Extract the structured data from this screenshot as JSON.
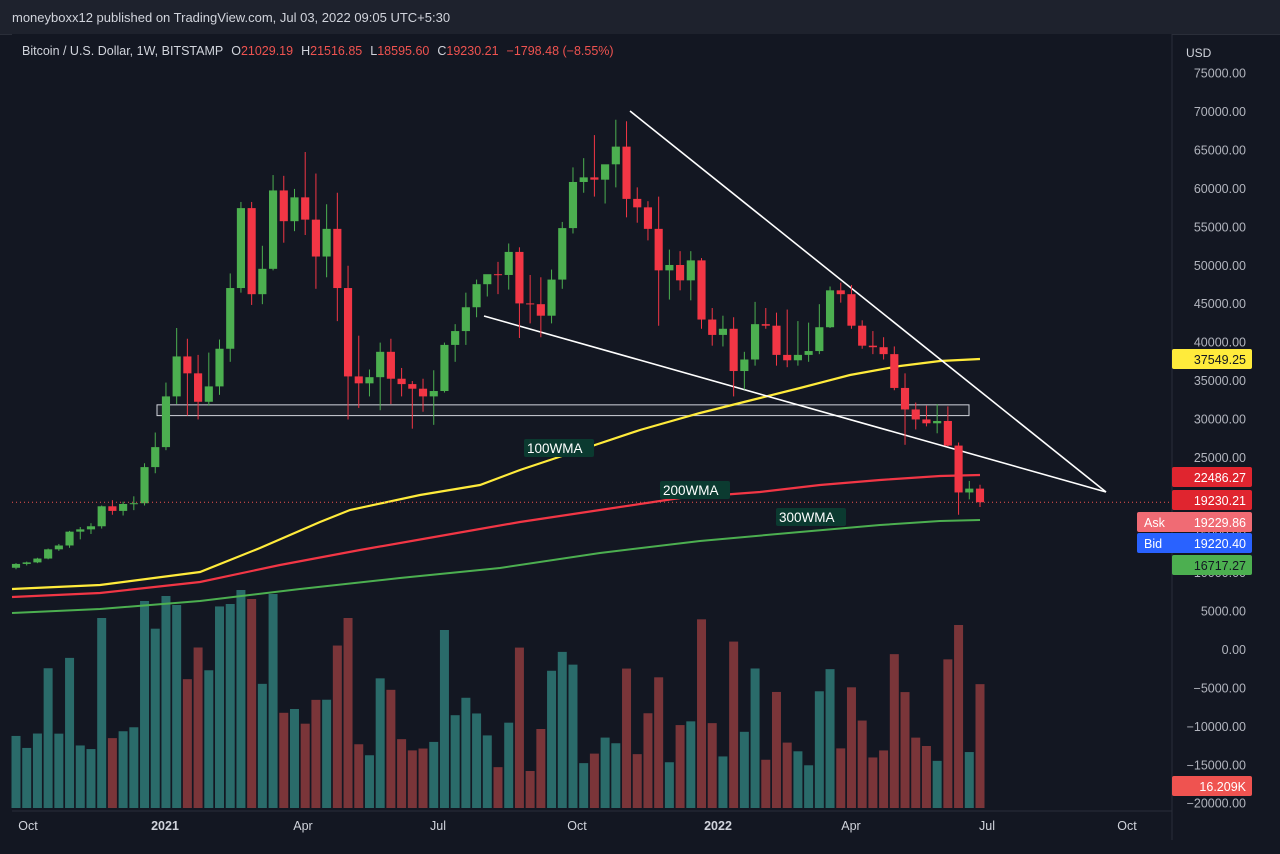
{
  "header": {
    "publisher": "moneyboxx12 published on TradingView.com, Jul 03, 2022 09:05 UTC+5:30"
  },
  "legend": {
    "symbol": "Bitcoin / U.S. Dollar, 1W, BITSTAMP",
    "o_label": "O",
    "o": "21029.19",
    "h_label": "H",
    "h": "21516.85",
    "l_label": "L",
    "l": "18595.60",
    "c_label": "C",
    "c": "19230.21",
    "change": "−1798.48 (−8.55%)"
  },
  "colors": {
    "up": "#26a69a",
    "down": "#ef5350",
    "candle_up": "#4caf50",
    "candle_down": "#f23645",
    "wma100": "#ffeb3b",
    "wma200": "#f23645",
    "wma300": "#4caf50",
    "trendline": "#ffffff"
  },
  "chart_data": {
    "type": "candlestick",
    "timeframe": "1W",
    "price_axis": {
      "currency": "USD",
      "ticks": [
        "75000.00",
        "70000.00",
        "65000.00",
        "60000.00",
        "55000.00",
        "50000.00",
        "45000.00",
        "40000.00",
        "35000.00",
        "30000.00",
        "25000.00",
        "20000.00",
        "15000.00",
        "10000.00",
        "5000.00",
        "0.00",
        "−5000.00",
        "−10000.00",
        "−15000.00",
        "−20000.00"
      ],
      "ylim": [
        -20000,
        77000
      ]
    },
    "time_axis": {
      "ticks": [
        "Oct",
        "2021",
        "Apr",
        "Jul",
        "Oct",
        "2022",
        "Apr",
        "Jul",
        "Oct"
      ]
    },
    "candles_weekly_approx": [
      [
        10700,
        11300,
        10500,
        11200
      ],
      [
        11200,
        11500,
        11000,
        11400
      ],
      [
        11400,
        12000,
        11300,
        11900
      ],
      [
        11900,
        13200,
        11800,
        13100
      ],
      [
        13100,
        13800,
        12900,
        13600
      ],
      [
        13600,
        15500,
        13300,
        15400
      ],
      [
        15400,
        16000,
        14400,
        15700
      ],
      [
        15700,
        16500,
        15100,
        16100
      ],
      [
        16100,
        18800,
        15800,
        18700
      ],
      [
        18700,
        19500,
        17600,
        18100
      ],
      [
        18100,
        19300,
        17500,
        19000
      ],
      [
        19000,
        20000,
        18200,
        19100
      ],
      [
        19100,
        24300,
        18800,
        23800
      ],
      [
        23800,
        28300,
        23000,
        26400
      ],
      [
        26400,
        34800,
        26000,
        33000
      ],
      [
        33000,
        41900,
        32000,
        38200
      ],
      [
        38200,
        40500,
        30500,
        36000
      ],
      [
        36000,
        38400,
        30000,
        32300
      ],
      [
        32300,
        38700,
        31800,
        34300
      ],
      [
        34300,
        40400,
        33200,
        39200
      ],
      [
        39200,
        49000,
        37500,
        47100
      ],
      [
        47100,
        58300,
        46500,
        57500
      ],
      [
        57500,
        58300,
        44900,
        46300
      ],
      [
        46300,
        52600,
        45000,
        49600
      ],
      [
        49600,
        61800,
        49400,
        59800
      ],
      [
        59800,
        61700,
        53000,
        55800
      ],
      [
        55800,
        60000,
        54500,
        58900
      ],
      [
        58900,
        64800,
        54000,
        56000
      ],
      [
        56000,
        62000,
        47000,
        51200
      ],
      [
        51200,
        58000,
        48500,
        54800
      ],
      [
        54800,
        59500,
        42800,
        47100
      ],
      [
        47100,
        50000,
        30000,
        35600
      ],
      [
        35600,
        40900,
        31500,
        34700
      ],
      [
        34700,
        36500,
        33000,
        35500
      ],
      [
        35500,
        40000,
        31200,
        38800
      ],
      [
        38800,
        40500,
        32000,
        35300
      ],
      [
        35300,
        36700,
        33000,
        34600
      ],
      [
        34600,
        35000,
        28800,
        34000
      ],
      [
        34000,
        35300,
        31000,
        33000
      ],
      [
        33000,
        36400,
        29300,
        33700
      ],
      [
        33700,
        40000,
        33500,
        39700
      ],
      [
        39700,
        42400,
        37500,
        41500
      ],
      [
        41500,
        46500,
        39700,
        44600
      ],
      [
        44600,
        48200,
        43300,
        47600
      ],
      [
        47600,
        48100,
        46000,
        48900
      ],
      [
        48900,
        50500,
        46300,
        48800
      ],
      [
        48800,
        52900,
        46900,
        51800
      ],
      [
        51800,
        52400,
        40600,
        45100
      ],
      [
        45100,
        48800,
        42500,
        45000
      ],
      [
        45000,
        48500,
        40700,
        43500
      ],
      [
        43500,
        49500,
        42500,
        48200
      ],
      [
        48200,
        55700,
        47000,
        54900
      ],
      [
        54900,
        62800,
        54200,
        60900
      ],
      [
        60900,
        64000,
        59500,
        61500
      ],
      [
        61500,
        67000,
        59000,
        61200
      ],
      [
        61200,
        62600,
        58100,
        63200
      ],
      [
        63200,
        69000,
        60200,
        65500
      ],
      [
        65500,
        68800,
        56300,
        58700
      ],
      [
        58700,
        60200,
        55600,
        57600
      ],
      [
        57600,
        58400,
        53300,
        54800
      ],
      [
        54800,
        59000,
        42200,
        49400
      ],
      [
        49400,
        52100,
        45600,
        50100
      ],
      [
        50100,
        51900,
        46800,
        48100
      ],
      [
        48100,
        51900,
        45500,
        50700
      ],
      [
        50700,
        51000,
        41800,
        43000
      ],
      [
        43000,
        44500,
        39600,
        41000
      ],
      [
        41000,
        43500,
        39500,
        41800
      ],
      [
        41800,
        43300,
        33000,
        36300
      ],
      [
        36300,
        38800,
        33900,
        37800
      ],
      [
        37800,
        45300,
        37000,
        42400
      ],
      [
        42400,
        44500,
        41800,
        42200
      ],
      [
        42200,
        43900,
        37000,
        38400
      ],
      [
        38400,
        44300,
        36800,
        37700
      ],
      [
        37700,
        42800,
        37000,
        38400
      ],
      [
        38400,
        42600,
        37500,
        38900
      ],
      [
        38900,
        45000,
        38500,
        42000
      ],
      [
        42000,
        47300,
        41900,
        46800
      ],
      [
        46800,
        47800,
        45200,
        46300
      ],
      [
        46300,
        47500,
        41800,
        42200
      ],
      [
        42200,
        42900,
        39200,
        39600
      ],
      [
        39600,
        41500,
        38500,
        39400
      ],
      [
        39400,
        40700,
        37800,
        38500
      ],
      [
        38500,
        39500,
        33800,
        34100
      ],
      [
        34100,
        36000,
        26700,
        31300
      ],
      [
        31300,
        32200,
        28700,
        30000
      ],
      [
        30000,
        31800,
        29100,
        29500
      ],
      [
        29500,
        32000,
        28200,
        29800
      ],
      [
        29800,
        31700,
        26500,
        26600
      ],
      [
        26600,
        27000,
        17600,
        20500
      ],
      [
        20500,
        22000,
        19600,
        21000
      ],
      [
        21000,
        21500,
        18600,
        19230
      ]
    ],
    "series": [
      {
        "name": "100WMA",
        "last_value": 37549.25
      },
      {
        "name": "200WMA",
        "last_value": 22486.27
      },
      {
        "name": "300WMA",
        "last_value": 16717.27
      }
    ],
    "volume": {
      "last_value": "16.209K"
    },
    "price_labels": {
      "wma100": "37549.25",
      "wma200": "22486.27",
      "last_price": "19230.21",
      "ask_label": "Ask",
      "ask": "19229.86",
      "bid_label": "Bid",
      "bid": "19220.40",
      "wma300": "16717.27",
      "volume": "16.209K"
    },
    "annotations": {
      "wma100": "100WMA",
      "wma200": "200WMA",
      "wma300": "300WMA"
    },
    "support_zone": [
      30500,
      31900
    ]
  }
}
